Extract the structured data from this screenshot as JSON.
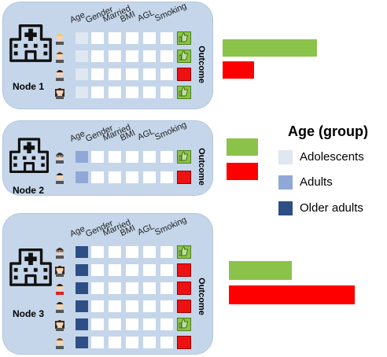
{
  "columns": [
    "Age",
    "Gender",
    "Married",
    "BMI",
    "AGL",
    "Smoking"
  ],
  "outcome_label": "Outcome",
  "legend": {
    "title": "Age (group)",
    "items": [
      {
        "label": "Adolescents",
        "color": "#dfe7f1"
      },
      {
        "label": "Adults",
        "color": "#8fa8d8"
      },
      {
        "label": "Older adults",
        "color": "#2e4f86"
      }
    ]
  },
  "colors": {
    "good": "#8bc34a",
    "bad": "#ff0000",
    "node_bg": "#c5d6ea"
  },
  "nodes": [
    {
      "label": "Node 1",
      "rows": [
        {
          "age_group": "adolescents",
          "outcome": "good",
          "avatar": "blonde-person-icon"
        },
        {
          "age_group": "adolescents",
          "outcome": "good",
          "avatar": "brown-hair-person-icon"
        },
        {
          "age_group": "adolescents",
          "outcome": "bad",
          "avatar": "dark-hair-person-icon"
        },
        {
          "age_group": "adolescents",
          "outcome": "good",
          "avatar": "long-hair-person-icon"
        }
      ],
      "outcome_counts": {
        "good": 3,
        "bad": 1
      }
    },
    {
      "label": "Node 2",
      "rows": [
        {
          "age_group": "adults",
          "outcome": "good",
          "avatar": "glasses-person-icon"
        },
        {
          "age_group": "adults",
          "outcome": "bad",
          "avatar": "dark-hair-person-icon"
        }
      ],
      "outcome_counts": {
        "good": 1,
        "bad": 1
      }
    },
    {
      "label": "Node 3",
      "rows": [
        {
          "age_group": "older",
          "outcome": "good",
          "avatar": "mustache-person-icon"
        },
        {
          "age_group": "older",
          "outcome": "bad",
          "avatar": "long-hair-person-icon"
        },
        {
          "age_group": "older",
          "outcome": "bad",
          "avatar": "red-shirt-person-icon"
        },
        {
          "age_group": "older",
          "outcome": "bad",
          "avatar": "dark-hair-person-icon"
        },
        {
          "age_group": "older",
          "outcome": "good",
          "avatar": "long-hair-person-icon"
        },
        {
          "age_group": "older",
          "outcome": "bad",
          "avatar": "brown-hair-person-icon"
        }
      ],
      "outcome_counts": {
        "good": 2,
        "bad": 4
      }
    }
  ]
}
